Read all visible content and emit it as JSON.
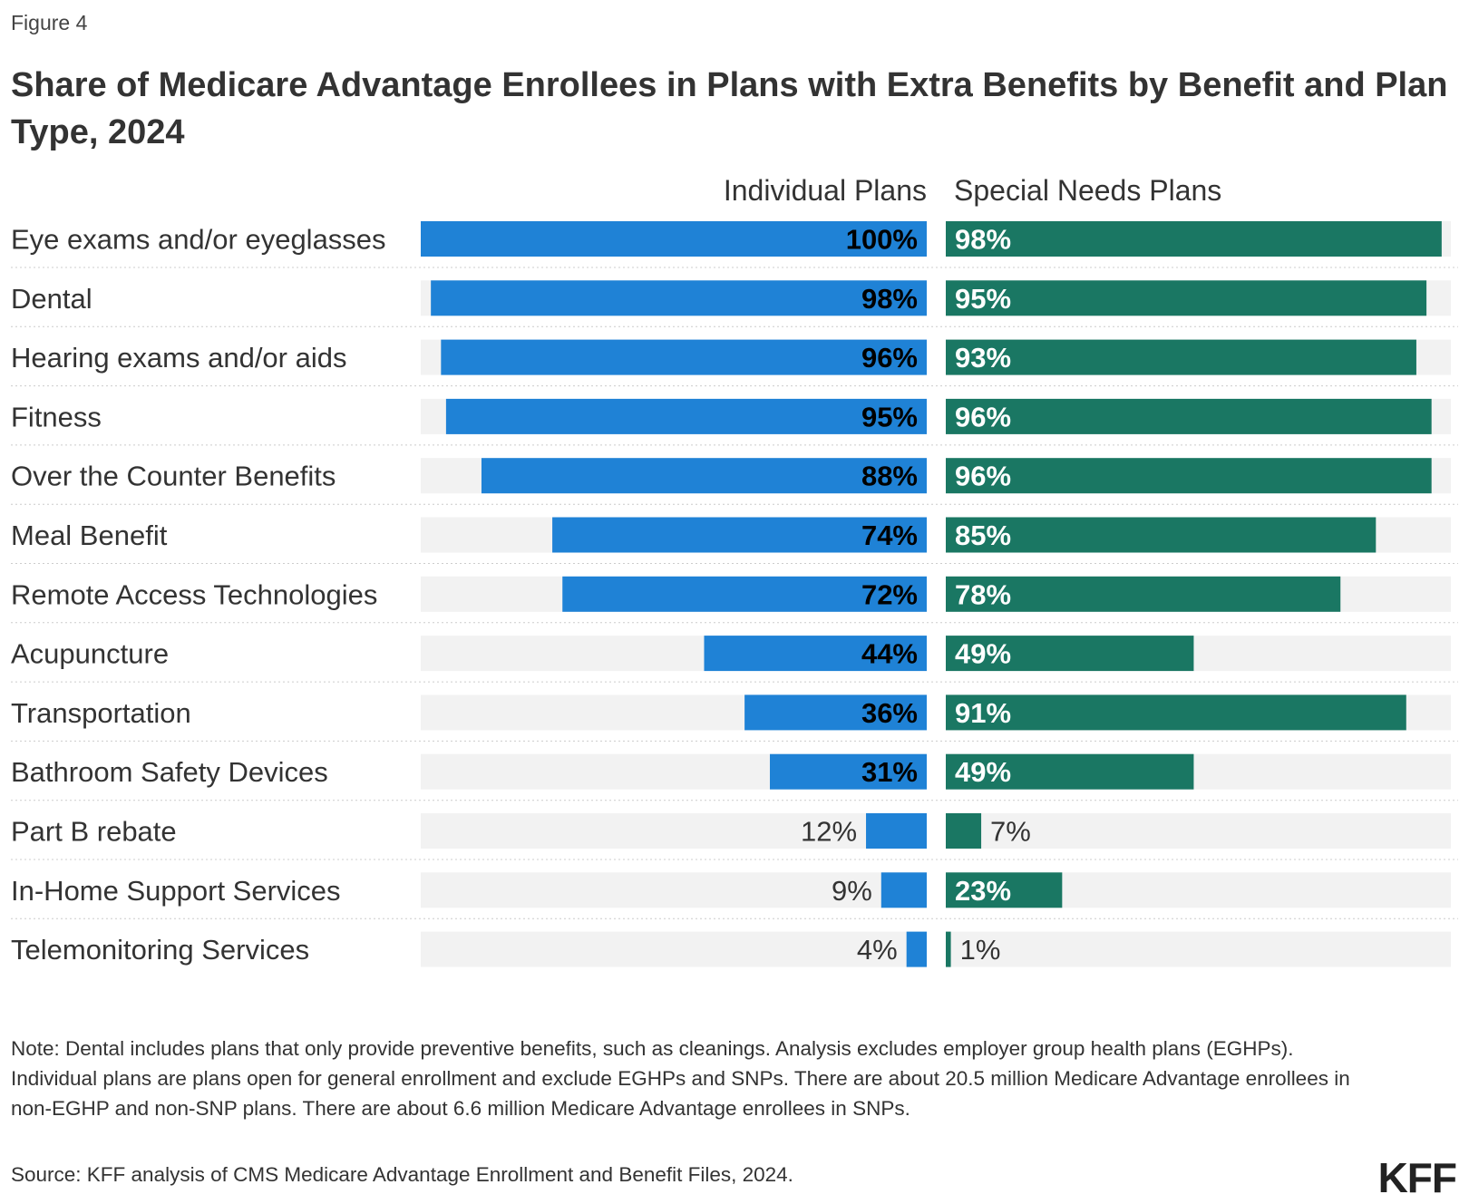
{
  "figure_label": "Figure 4",
  "title": "Share of Medicare Advantage Enrollees in Plans with Extra Benefits by Benefit and Plan Type, 2024",
  "chart_data": {
    "type": "bar",
    "orientation": "horizontal",
    "categories": [
      "Eye exams and/or eyeglasses",
      "Dental",
      "Hearing exams and/or aids",
      "Fitness",
      "Over the Counter Benefits",
      "Meal Benefit",
      "Remote Access Technologies",
      "Acupuncture",
      "Transportation",
      "Bathroom Safety Devices",
      "Part B rebate",
      "In-Home Support Services",
      "Telemonitoring Services"
    ],
    "series": [
      {
        "name": "Individual Plans",
        "color": "#1f82d6",
        "values": [
          100,
          98,
          96,
          95,
          88,
          74,
          72,
          44,
          36,
          31,
          12,
          9,
          4
        ]
      },
      {
        "name": "Special Needs Plans",
        "color": "#1a7763",
        "values": [
          98,
          95,
          93,
          96,
          96,
          85,
          78,
          49,
          91,
          49,
          7,
          23,
          1
        ]
      }
    ],
    "xlim": [
      0,
      100
    ],
    "unit": "%",
    "background_track_color": "#f2f2f2"
  },
  "note": "Note: Dental includes plans that only provide preventive benefits, such as cleanings. Analysis excludes employer group health plans (EGHPs). Individual plans are plans open for general enrollment and exclude EGHPs and SNPs. There are about 20.5 million Medicare Advantage enrollees in non-EGHP and non-SNP plans. There are about 6.6 million Medicare Advantage enrollees in SNPs.",
  "source": "Source: KFF analysis of CMS Medicare Advantage Enrollment and Benefit Files, 2024.",
  "logo": "KFF"
}
